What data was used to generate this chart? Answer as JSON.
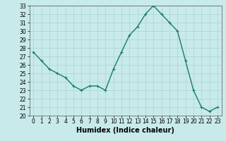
{
  "x": [
    0,
    1,
    2,
    3,
    4,
    5,
    6,
    7,
    8,
    9,
    10,
    11,
    12,
    13,
    14,
    15,
    16,
    17,
    18,
    19,
    20,
    21,
    22,
    23
  ],
  "y": [
    27.5,
    26.5,
    25.5,
    25.0,
    24.5,
    23.5,
    23.0,
    23.5,
    23.5,
    23.0,
    25.5,
    27.5,
    29.5,
    30.5,
    32.0,
    33.0,
    32.0,
    31.0,
    30.0,
    26.5,
    23.0,
    21.0,
    20.5,
    21.0
  ],
  "line_color": "#1a7a6a",
  "bg_color": "#c8eaea",
  "grid_color": "#aad4d4",
  "xlabel": "Humidex (Indice chaleur)",
  "ylim": [
    20,
    33
  ],
  "xlim": [
    -0.5,
    23.5
  ],
  "yticks": [
    20,
    21,
    22,
    23,
    24,
    25,
    26,
    27,
    28,
    29,
    30,
    31,
    32,
    33
  ],
  "xticks": [
    0,
    1,
    2,
    3,
    4,
    5,
    6,
    7,
    8,
    9,
    10,
    11,
    12,
    13,
    14,
    15,
    16,
    17,
    18,
    19,
    20,
    21,
    22,
    23
  ],
  "xtick_labels": [
    "0",
    "1",
    "2",
    "3",
    "4",
    "5",
    "6",
    "7",
    "8",
    "9",
    "10",
    "11",
    "12",
    "13",
    "14",
    "15",
    "16",
    "17",
    "18",
    "19",
    "20",
    "21",
    "22",
    "23"
  ],
  "marker": "+",
  "marker_size": 3.5,
  "linewidth": 1.0,
  "tick_fontsize": 5.5,
  "xlabel_fontsize": 7.0
}
